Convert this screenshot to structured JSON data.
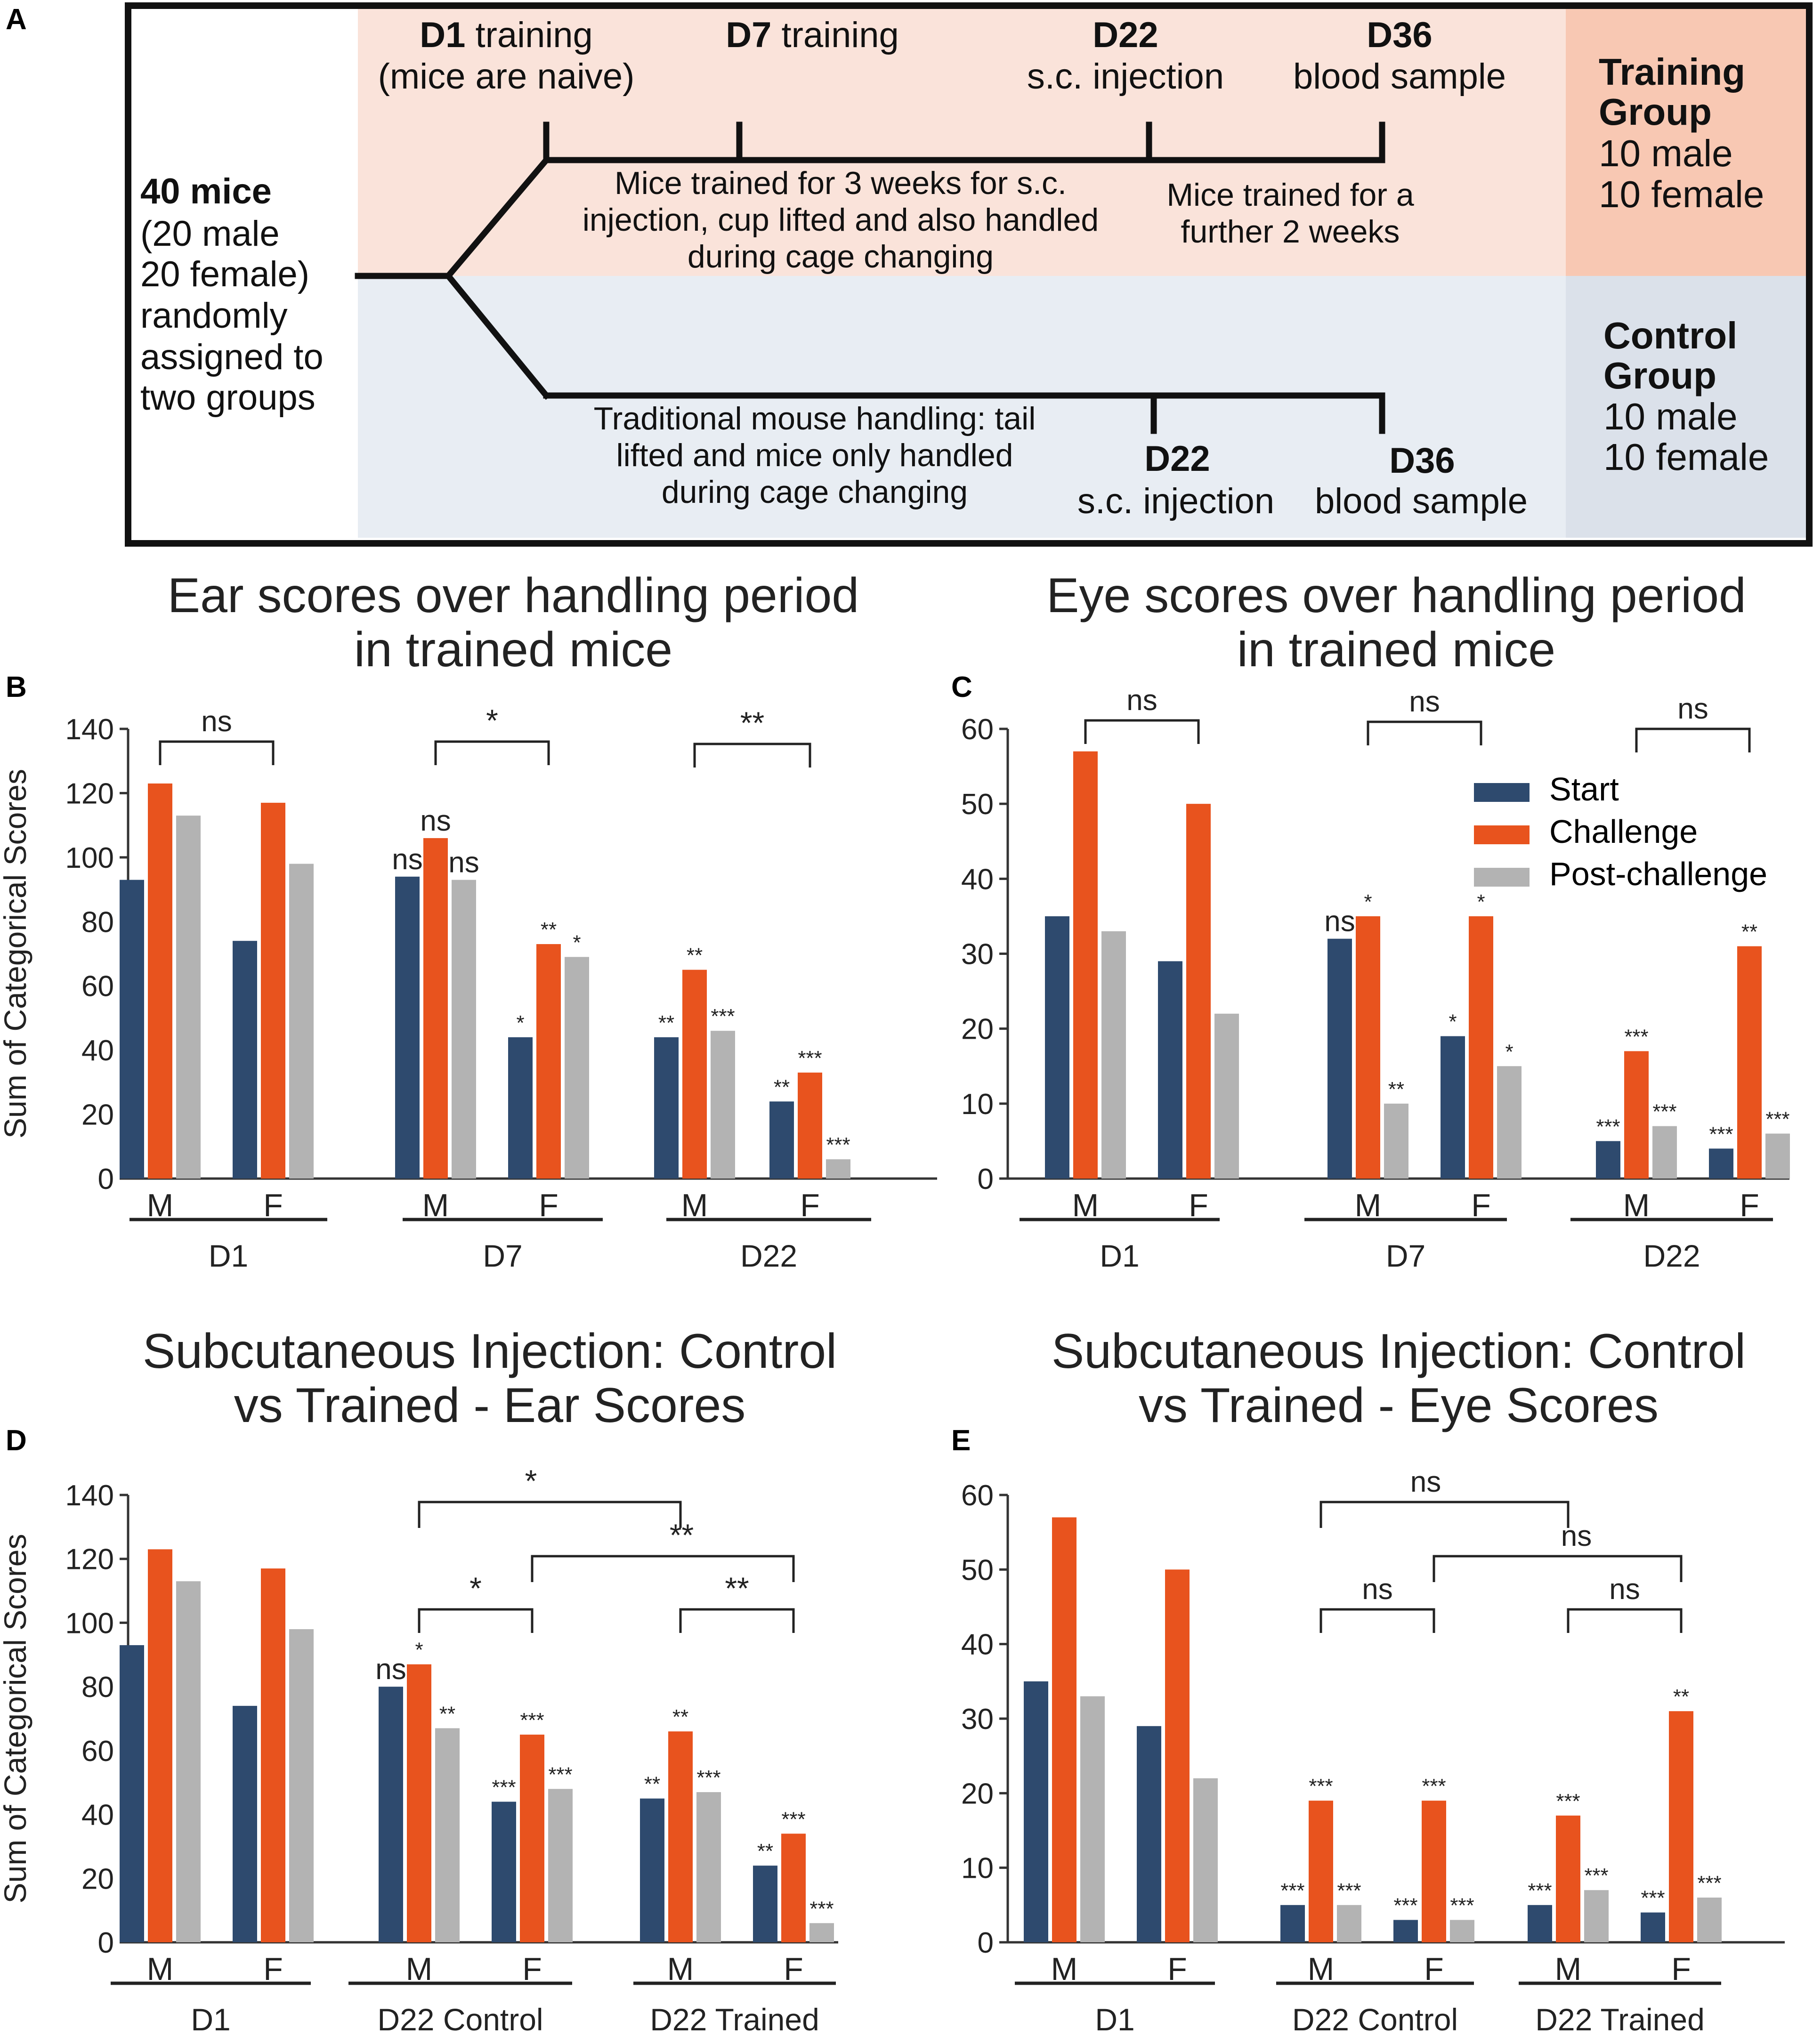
{
  "colors": {
    "start": "#2e4a6e",
    "challenge": "#e8531e",
    "post": "#b3b3b3",
    "trainingBg": "#fae3da",
    "trainingLabelBg": "#f8c8b3",
    "controlBg": "#e8edf3",
    "controlLabelBg": "#dbe1ea"
  },
  "panelA": {
    "letter": "A",
    "mice": [
      "40 mice",
      "(20 male",
      "20 female)",
      "randomly",
      "assigned to",
      "two groups"
    ],
    "d1": [
      "D1",
      " training",
      "(mice are naive)"
    ],
    "d7": [
      "D7",
      " training"
    ],
    "d22top": [
      "D22",
      "s.c. injection"
    ],
    "d36top": [
      "D36",
      "blood sample"
    ],
    "trainText1": [
      "Mice trained for 3 weeks for s.c.",
      "injection, cup lifted and also handled",
      "during cage changing"
    ],
    "trainText2": [
      "Mice trained for a",
      "further 2 weeks"
    ],
    "controlText": [
      "Traditional mouse handling: tail",
      "lifted and mice only handled",
      "during cage changing"
    ],
    "d22bot": [
      "D22",
      "s.c. injection"
    ],
    "d36bot": [
      "D36",
      "blood sample"
    ],
    "trainingGroup": [
      "Training",
      "Group",
      "10 male",
      "10 female"
    ],
    "controlGroup": [
      "Control",
      "Group",
      "10 male",
      "10 female"
    ]
  },
  "legend": [
    "Start",
    "Challenge",
    "Post-challenge"
  ],
  "chart_data": [
    {
      "panel": "B",
      "type": "bar",
      "title": [
        "Ear scores over handling period",
        "in trained mice"
      ],
      "ylabel": "Sum of Categorical Scores",
      "ylim": [
        0,
        140
      ],
      "ticks": [
        "0",
        "20",
        "40",
        "60",
        "80",
        "100",
        "120",
        "140"
      ],
      "groups": [
        {
          "name": "D1",
          "sexes": [
            {
              "sex": "M",
              "values": [
                93,
                123,
                113
              ],
              "labels": [
                "",
                "",
                ""
              ]
            },
            {
              "sex": "F",
              "values": [
                74,
                117,
                98
              ],
              "labels": [
                "",
                "",
                ""
              ]
            }
          ],
          "bracket": "ns"
        },
        {
          "name": "D7",
          "sexes": [
            {
              "sex": "M",
              "values": [
                94,
                106,
                93
              ],
              "labels": [
                "ns",
                "ns",
                "ns"
              ]
            },
            {
              "sex": "F",
              "values": [
                44,
                73,
                69
              ],
              "labels": [
                "*",
                "**",
                "*"
              ]
            }
          ],
          "bracket": "*"
        },
        {
          "name": "D22",
          "sexes": [
            {
              "sex": "M",
              "values": [
                44,
                65,
                46
              ],
              "labels": [
                "**",
                "**",
                "***"
              ]
            },
            {
              "sex": "F",
              "values": [
                24,
                33,
                6
              ],
              "labels": [
                "**",
                "***",
                "***"
              ]
            }
          ],
          "bracket": "**"
        }
      ]
    },
    {
      "panel": "C",
      "type": "bar",
      "title": [
        "Eye scores over handling period",
        "in trained mice"
      ],
      "ylabel": "",
      "ylim": [
        0,
        60
      ],
      "ticks": [
        "0",
        "10",
        "20",
        "30",
        "40",
        "50",
        "60"
      ],
      "groups": [
        {
          "name": "D1",
          "sexes": [
            {
              "sex": "M",
              "values": [
                35,
                57,
                33
              ],
              "labels": [
                "",
                "",
                ""
              ]
            },
            {
              "sex": "F",
              "values": [
                29,
                50,
                22
              ],
              "labels": [
                "",
                "",
                ""
              ]
            }
          ],
          "bracket": "ns"
        },
        {
          "name": "D7",
          "sexes": [
            {
              "sex": "M",
              "values": [
                32,
                35,
                10
              ],
              "labels": [
                "ns",
                "*",
                "**"
              ]
            },
            {
              "sex": "F",
              "values": [
                19,
                35,
                15
              ],
              "labels": [
                "*",
                "*",
                "*"
              ]
            }
          ],
          "bracket": "ns"
        },
        {
          "name": "D22",
          "sexes": [
            {
              "sex": "M",
              "values": [
                5,
                17,
                7
              ],
              "labels": [
                "***",
                "***",
                "***"
              ]
            },
            {
              "sex": "F",
              "values": [
                4,
                31,
                6
              ],
              "labels": [
                "***",
                "**",
                "***"
              ]
            }
          ],
          "bracket": "ns"
        }
      ]
    },
    {
      "panel": "D",
      "type": "bar",
      "title": [
        "Subcutaneous Injection: Control",
        "vs Trained - Ear Scores"
      ],
      "ylabel": "Sum of Categorical Scores",
      "ylim": [
        0,
        140
      ],
      "ticks": [
        "0",
        "20",
        "40",
        "60",
        "80",
        "100",
        "120",
        "140"
      ],
      "groups": [
        {
          "name": "D1",
          "sexes": [
            {
              "sex": "M",
              "values": [
                93,
                123,
                113
              ],
              "labels": [
                "",
                "",
                ""
              ]
            },
            {
              "sex": "F",
              "values": [
                74,
                117,
                98
              ],
              "labels": [
                "",
                "",
                ""
              ]
            }
          ]
        },
        {
          "name": "D22 Control",
          "sexes": [
            {
              "sex": "M",
              "values": [
                80,
                87,
                67
              ],
              "labels": [
                "ns",
                "*",
                "**"
              ]
            },
            {
              "sex": "F",
              "values": [
                44,
                65,
                48
              ],
              "labels": [
                "***",
                "***",
                "***"
              ]
            }
          ],
          "bracket": "*"
        },
        {
          "name": "D22 Trained",
          "sexes": [
            {
              "sex": "M",
              "values": [
                45,
                66,
                47
              ],
              "labels": [
                "**",
                "**",
                "***"
              ]
            },
            {
              "sex": "F",
              "values": [
                24,
                34,
                6
              ],
              "labels": [
                "**",
                "***",
                "***"
              ]
            }
          ],
          "bracket": "**"
        }
      ],
      "cross_brackets": [
        {
          "from": "D22 Control M",
          "to": "D22 Trained M",
          "label": "*"
        },
        {
          "from": "D22 Control F",
          "to": "D22 Trained F",
          "label": "**"
        }
      ]
    },
    {
      "panel": "E",
      "type": "bar",
      "title": [
        "Subcutaneous Injection: Control",
        "vs Trained - Eye Scores"
      ],
      "ylabel": "",
      "ylim": [
        0,
        60
      ],
      "ticks": [
        "0",
        "10",
        "20",
        "30",
        "40",
        "50",
        "60"
      ],
      "groups": [
        {
          "name": "D1",
          "sexes": [
            {
              "sex": "M",
              "values": [
                35,
                57,
                33
              ],
              "labels": [
                "",
                "",
                ""
              ]
            },
            {
              "sex": "F",
              "values": [
                29,
                50,
                22
              ],
              "labels": [
                "",
                "",
                ""
              ]
            }
          ]
        },
        {
          "name": "D22 Control",
          "sexes": [
            {
              "sex": "M",
              "values": [
                5,
                19,
                5
              ],
              "labels": [
                "***",
                "***",
                "***"
              ]
            },
            {
              "sex": "F",
              "values": [
                3,
                19,
                3
              ],
              "labels": [
                "***",
                "***",
                "***"
              ]
            }
          ],
          "bracket": "ns"
        },
        {
          "name": "D22 Trained",
          "sexes": [
            {
              "sex": "M",
              "values": [
                5,
                17,
                7
              ],
              "labels": [
                "***",
                "***",
                "***"
              ]
            },
            {
              "sex": "F",
              "values": [
                4,
                31,
                6
              ],
              "labels": [
                "***",
                "**",
                "***"
              ]
            }
          ],
          "bracket": "ns"
        }
      ],
      "cross_brackets": [
        {
          "from": "D22 Control M",
          "to": "D22 Trained M",
          "label": "ns"
        },
        {
          "from": "D22 Control F",
          "to": "D22 Trained F",
          "label": "ns"
        }
      ]
    }
  ]
}
